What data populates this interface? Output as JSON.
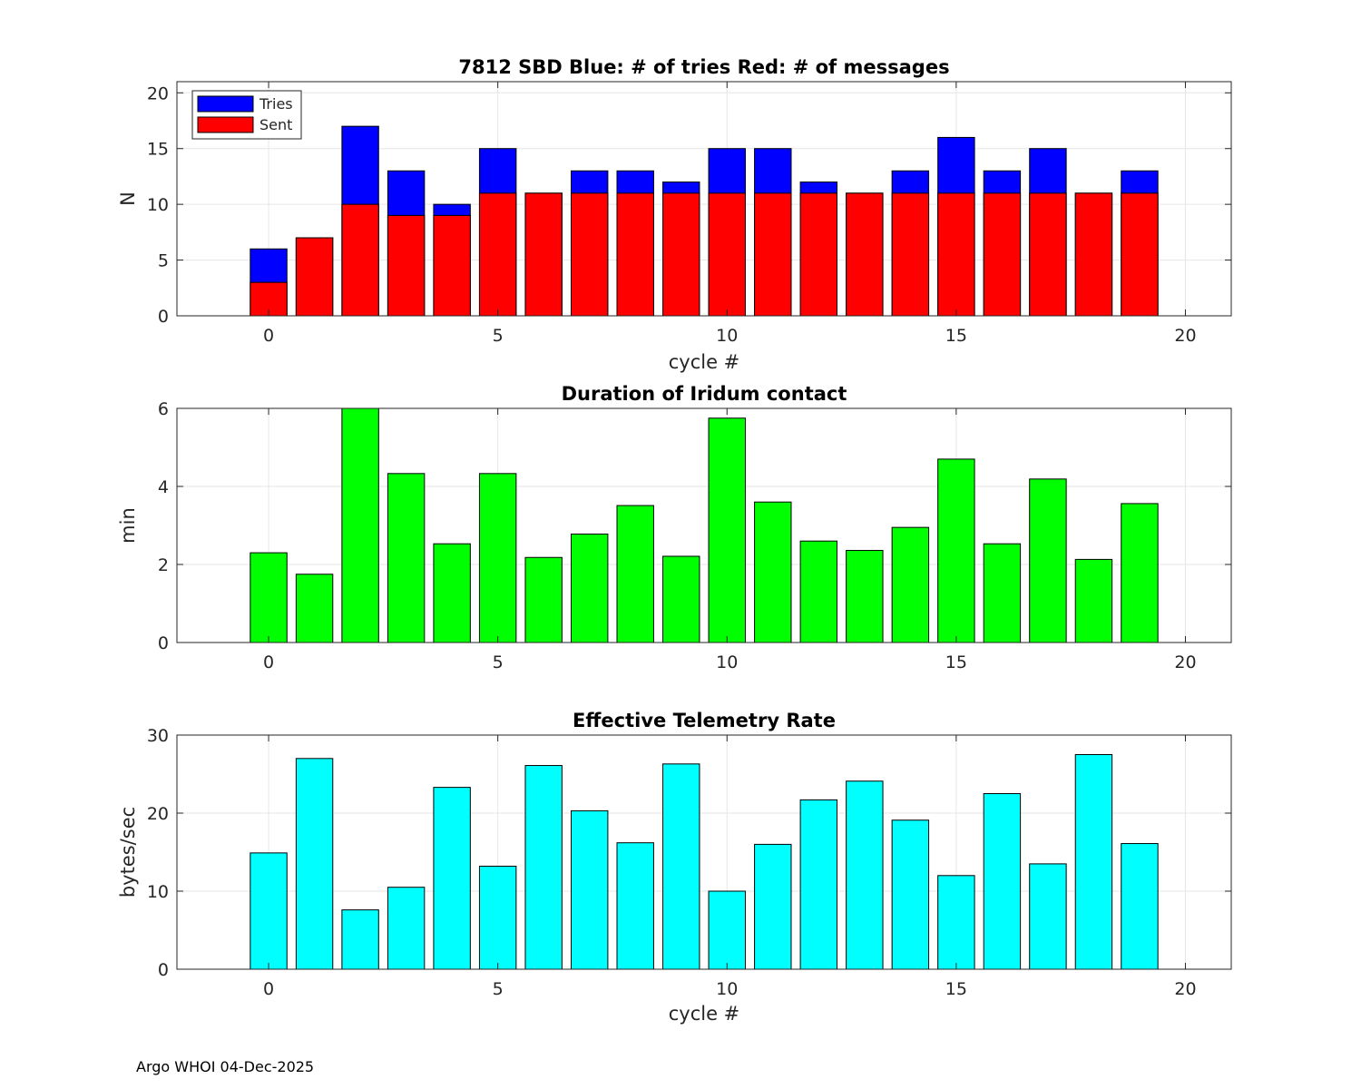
{
  "chart_data": [
    {
      "type": "bar",
      "title": "7812 SBD  Blue: # of tries   Red: # of messages",
      "xlabel": "cycle #",
      "ylabel": "N",
      "xlim": [
        -2,
        21
      ],
      "ylim": [
        0,
        21
      ],
      "xticks": [
        0,
        5,
        10,
        15,
        20
      ],
      "yticks": [
        0,
        5,
        10,
        15,
        20
      ],
      "grid": true,
      "legend": {
        "placement": "top-left",
        "entries": [
          {
            "label": "Tries",
            "color": "#0000ff"
          },
          {
            "label": "Sent",
            "color": "#ff0000"
          }
        ]
      },
      "categories": [
        0,
        1,
        2,
        3,
        4,
        5,
        6,
        7,
        8,
        9,
        10,
        11,
        12,
        13,
        14,
        15,
        16,
        17,
        18,
        19
      ],
      "series": [
        {
          "name": "Tries",
          "color": "#0000ff",
          "values": [
            6,
            7,
            17,
            13,
            10,
            15,
            11,
            13,
            13,
            12,
            15,
            15,
            12,
            11,
            13,
            16,
            13,
            15,
            11,
            13
          ]
        },
        {
          "name": "Sent",
          "color": "#ff0000",
          "values": [
            3,
            7,
            10,
            9,
            9,
            11,
            11,
            11,
            11,
            11,
            11,
            11,
            11,
            11,
            11,
            11,
            11,
            11,
            11,
            11
          ]
        }
      ]
    },
    {
      "type": "bar",
      "title": "Duration of Iridum contact",
      "xlabel": "",
      "ylabel": "min",
      "xlim": [
        -2,
        21
      ],
      "ylim": [
        0,
        6
      ],
      "xticks": [
        0,
        5,
        10,
        15,
        20
      ],
      "yticks": [
        0,
        2,
        4,
        6
      ],
      "grid": true,
      "categories": [
        0,
        1,
        2,
        3,
        4,
        5,
        6,
        7,
        8,
        9,
        10,
        11,
        12,
        13,
        14,
        15,
        16,
        17,
        18,
        19
      ],
      "series": [
        {
          "name": "Duration",
          "color": "#00ff00",
          "values": [
            2.3,
            1.75,
            6.0,
            4.33,
            2.53,
            4.33,
            2.18,
            2.78,
            3.51,
            2.21,
            5.75,
            3.6,
            2.6,
            2.36,
            2.95,
            4.7,
            2.53,
            4.19,
            2.13,
            3.56
          ]
        }
      ]
    },
    {
      "type": "bar",
      "title": "Effective Telemetry Rate",
      "xlabel": "cycle #",
      "ylabel": "bytes/sec",
      "xlim": [
        -2,
        21
      ],
      "ylim": [
        0,
        30
      ],
      "xticks": [
        0,
        5,
        10,
        15,
        20
      ],
      "yticks": [
        0,
        10,
        20,
        30
      ],
      "grid": true,
      "categories": [
        0,
        1,
        2,
        3,
        4,
        5,
        6,
        7,
        8,
        9,
        10,
        11,
        12,
        13,
        14,
        15,
        16,
        17,
        18,
        19
      ],
      "series": [
        {
          "name": "Rate",
          "color": "#00ffff",
          "values": [
            14.9,
            27.0,
            7.6,
            10.5,
            23.3,
            13.2,
            26.1,
            20.3,
            16.2,
            26.3,
            10.0,
            16.0,
            21.7,
            24.1,
            19.1,
            12.0,
            22.5,
            13.5,
            27.5,
            16.1
          ]
        }
      ]
    }
  ],
  "footer": "Argo WHOI 04-Dec-2025"
}
